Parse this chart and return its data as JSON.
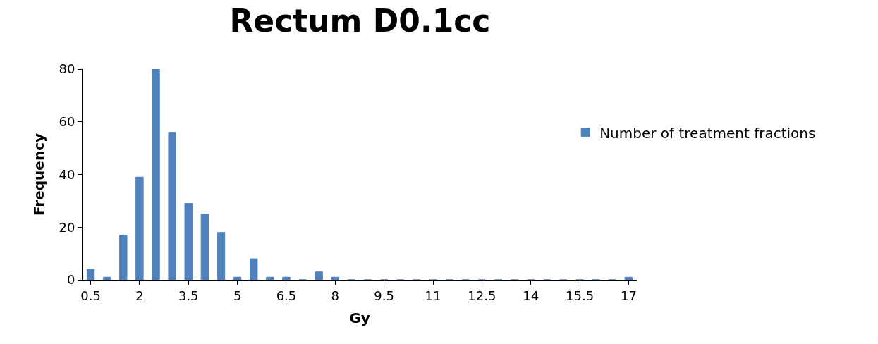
{
  "chart_data": {
    "type": "bar",
    "title": "Rectum D0.1cc",
    "xlabel": "Gy",
    "ylabel": "Frequency",
    "categories": [
      "0.5",
      null,
      null,
      "2",
      null,
      null,
      "3.5",
      null,
      null,
      "5",
      null,
      null,
      "6.5",
      null,
      null,
      "8",
      null,
      null,
      "9.5",
      null,
      null,
      "11",
      null,
      null,
      "12.5",
      null,
      null,
      "14",
      null,
      null,
      "15.5",
      null,
      null,
      "17"
    ],
    "series": [
      {
        "name": "Number of treatment fractions",
        "color": "#4f81bd",
        "values": [
          4,
          1,
          17,
          39,
          80,
          56,
          29,
          25,
          18,
          1,
          8,
          1,
          1,
          0,
          3,
          1,
          0,
          0,
          0,
          0,
          0,
          0,
          0,
          0,
          0,
          0,
          0,
          0,
          0,
          0,
          0,
          0,
          0,
          1
        ]
      }
    ],
    "ylim": [
      0,
      80
    ],
    "yticks": [
      0,
      20,
      40,
      60,
      80
    ],
    "legend": "right"
  }
}
